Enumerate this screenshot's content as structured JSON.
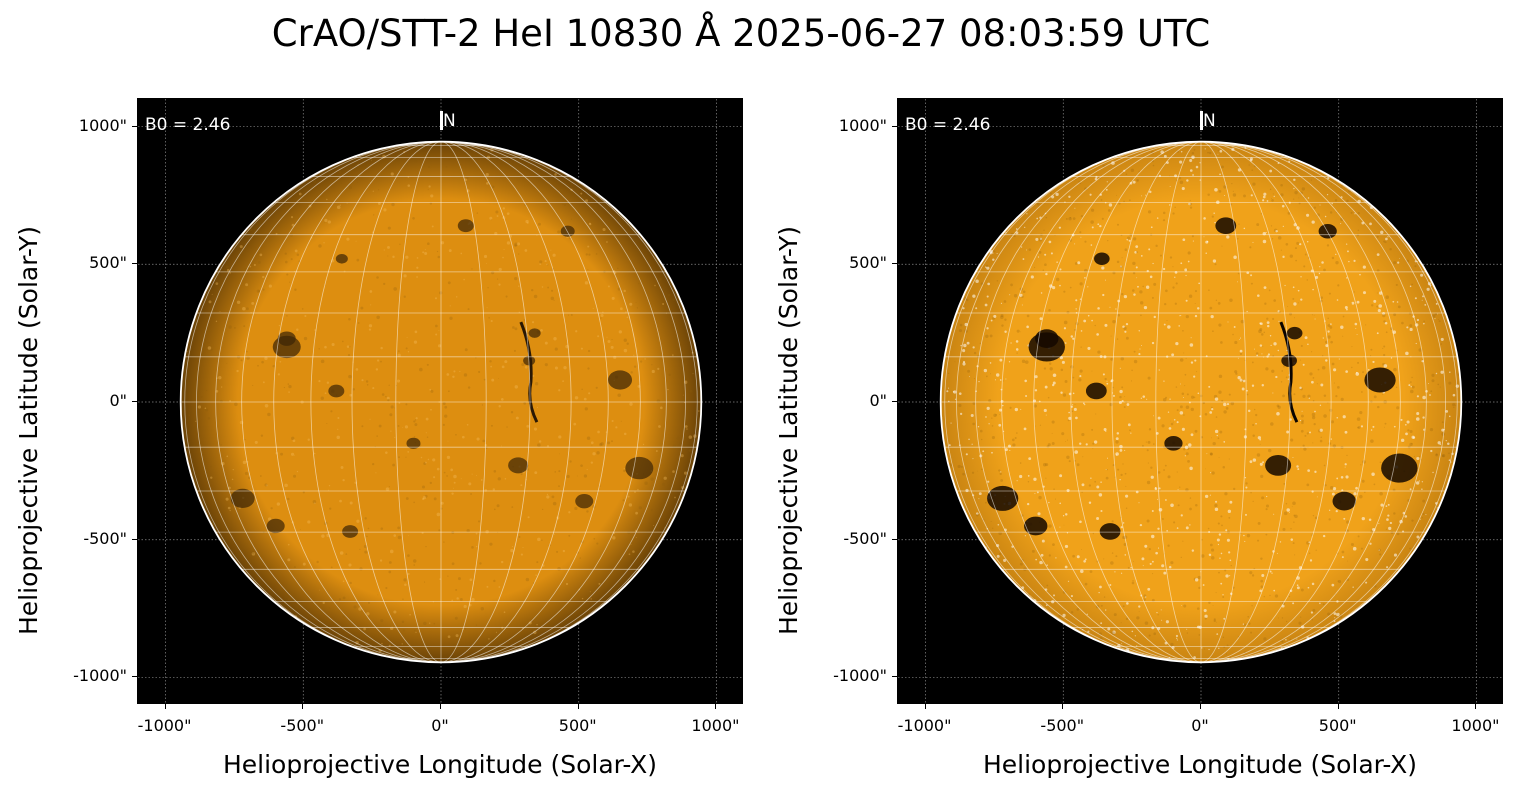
{
  "title": "CrAO/STT-2 HeI 10830 Å 2025-06-27 08:03:59 UTC",
  "panels": [
    {
      "annotation": "B0 = 2.46",
      "north_label": "N",
      "xlabel": "Helioprojective Longitude (Solar-X)",
      "ylabel": "Helioprojective Latitude (Solar-Y)",
      "xticks": [
        "-1000\"",
        "-500\"",
        "0\"",
        "500\"",
        "1000\""
      ],
      "yticks": [
        "1000\"",
        "500\"",
        "0\"",
        "-500\"",
        "-1000\""
      ],
      "disk_color": "#dd8e10",
      "contrast": "normal"
    },
    {
      "annotation": "B0 = 2.46",
      "north_label": "N",
      "xlabel": "Helioprojective Longitude (Solar-X)",
      "ylabel": "Helioprojective Latitude (Solar-Y)",
      "xticks": [
        "-1000\"",
        "-500\"",
        "0\"",
        "500\"",
        "1000\""
      ],
      "yticks": [
        "1000\"",
        "500\"",
        "0\"",
        "-500\"",
        "-1000\""
      ],
      "disk_color": "#f0a21a",
      "contrast": "enhanced"
    }
  ],
  "axis_range_arcsec": [
    -1100,
    1100
  ],
  "solar_radius_arcsec": 945,
  "grid_color": "#ffffff",
  "background_color": "#000000"
}
